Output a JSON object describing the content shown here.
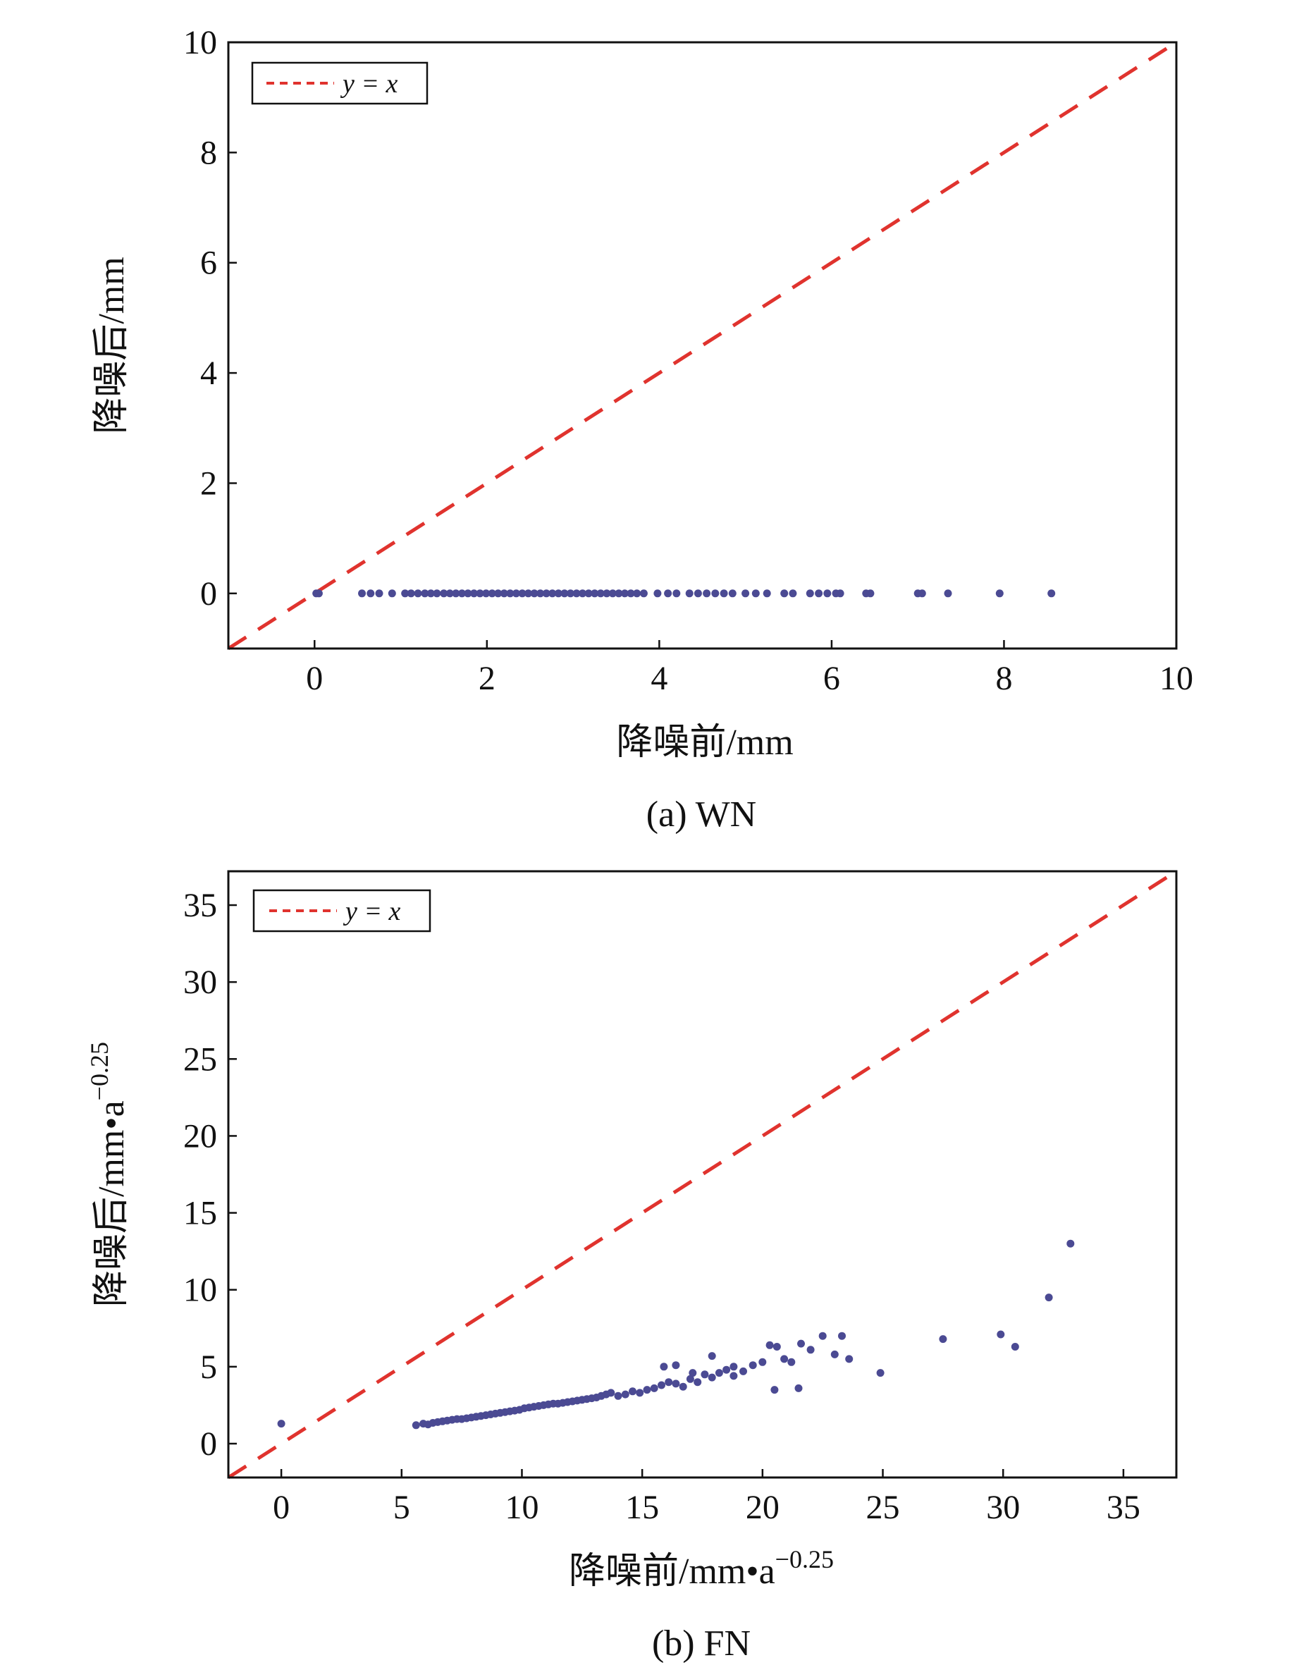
{
  "colors": {
    "ref_line": "#e0332e",
    "points": "#4b4a93",
    "axis": "#111111"
  },
  "chart_data": [
    {
      "id": "a",
      "type": "scatter",
      "caption": "(a) WN",
      "xlabel": "降噪前/mm",
      "ylabel": "降噪后/mm",
      "xlim": [
        -1,
        10
      ],
      "ylim": [
        -1,
        10
      ],
      "xticks": [
        "0",
        "2",
        "4",
        "6",
        "8",
        "10"
      ],
      "yticks": [
        "0",
        "2",
        "4",
        "6",
        "8",
        "10"
      ],
      "xtick_values": [
        0,
        2,
        4,
        6,
        8,
        10
      ],
      "ytick_values": [
        0,
        2,
        4,
        6,
        8,
        10
      ],
      "legend": {
        "label": "y = x",
        "position": "top-left"
      },
      "series": [
        {
          "name": "y = x",
          "kind": "line",
          "x": [
            -1,
            10
          ],
          "y": [
            -1,
            10
          ]
        },
        {
          "name": "points",
          "kind": "scatter",
          "x": [
            0.02,
            0.05,
            0.55,
            0.65,
            0.75,
            0.9,
            1.05,
            1.12,
            1.2,
            1.28,
            1.35,
            1.42,
            1.5,
            1.57,
            1.64,
            1.71,
            1.78,
            1.85,
            1.92,
            1.99,
            2.06,
            2.13,
            2.2,
            2.27,
            2.34,
            2.41,
            2.48,
            2.55,
            2.62,
            2.69,
            2.76,
            2.83,
            2.9,
            2.97,
            3.04,
            3.11,
            3.18,
            3.25,
            3.32,
            3.39,
            3.46,
            3.53,
            3.6,
            3.67,
            3.74,
            3.82,
            3.98,
            4.1,
            4.2,
            4.35,
            4.45,
            4.55,
            4.65,
            4.75,
            4.85,
            5.0,
            5.12,
            5.25,
            5.45,
            5.55,
            5.75,
            5.85,
            5.95,
            6.05,
            6.1,
            6.4,
            6.45,
            7.0,
            7.05,
            7.35,
            7.95,
            8.55
          ],
          "y": [
            0,
            0,
            0,
            0,
            0,
            0,
            0,
            0,
            0,
            0,
            0,
            0,
            0,
            0,
            0,
            0,
            0,
            0,
            0,
            0,
            0,
            0,
            0,
            0,
            0,
            0,
            0,
            0,
            0,
            0,
            0,
            0,
            0,
            0,
            0,
            0,
            0,
            0,
            0,
            0,
            0,
            0,
            0,
            0,
            0,
            0,
            0,
            0,
            0,
            0,
            0,
            0,
            0,
            0,
            0,
            0,
            0,
            0,
            0,
            0,
            0,
            0,
            0,
            0,
            0,
            0,
            0,
            0,
            0,
            0,
            0,
            0
          ]
        }
      ]
    },
    {
      "id": "b",
      "type": "scatter",
      "caption": "(b) FN",
      "xlabel": "降噪前/mm•a",
      "xlabel_sup": "−0.25",
      "ylabel": "降噪后/mm•a",
      "ylabel_sup": "−0.25",
      "xlim": [
        -2.2,
        37.2
      ],
      "ylim": [
        -2.2,
        37.2
      ],
      "xticks": [
        "0",
        "5",
        "10",
        "15",
        "20",
        "25",
        "30",
        "35"
      ],
      "yticks": [
        "0",
        "5",
        "10",
        "15",
        "20",
        "25",
        "30",
        "35"
      ],
      "xtick_values": [
        0,
        5,
        10,
        15,
        20,
        25,
        30,
        35
      ],
      "ytick_values": [
        0,
        5,
        10,
        15,
        20,
        25,
        30,
        35
      ],
      "legend": {
        "label": "y = x",
        "position": "top-left"
      },
      "series": [
        {
          "name": "y = x",
          "kind": "line",
          "x": [
            -2.2,
            37.2
          ],
          "y": [
            -2.2,
            37.2
          ]
        },
        {
          "name": "points",
          "kind": "scatter",
          "x": [
            0.0,
            5.6,
            5.9,
            6.1,
            6.3,
            6.5,
            6.7,
            6.9,
            7.1,
            7.3,
            7.5,
            7.7,
            7.9,
            8.1,
            8.3,
            8.5,
            8.7,
            8.9,
            9.1,
            9.3,
            9.5,
            9.7,
            9.9,
            10.1,
            10.3,
            10.5,
            10.7,
            10.9,
            11.1,
            11.3,
            11.5,
            11.7,
            11.9,
            12.1,
            12.3,
            12.5,
            12.7,
            12.9,
            13.1,
            13.3,
            13.5,
            13.7,
            14.0,
            14.3,
            14.6,
            14.9,
            15.2,
            15.5,
            15.8,
            16.1,
            16.4,
            16.7,
            17.0,
            17.3,
            17.6,
            17.9,
            18.2,
            18.5,
            18.8,
            19.2,
            19.6,
            20.0,
            20.3,
            20.6,
            20.9,
            21.2,
            21.6,
            22.0,
            22.5,
            23.0,
            23.3,
            23.6,
            24.9,
            27.5,
            29.9,
            30.5,
            31.9,
            32.8,
            15.9,
            17.9,
            18.8,
            20.5,
            21.5,
            16.4,
            17.1
          ],
          "y": [
            1.3,
            1.2,
            1.3,
            1.25,
            1.35,
            1.4,
            1.45,
            1.5,
            1.55,
            1.6,
            1.6,
            1.65,
            1.7,
            1.75,
            1.8,
            1.85,
            1.9,
            1.95,
            2.0,
            2.05,
            2.1,
            2.15,
            2.2,
            2.3,
            2.35,
            2.4,
            2.45,
            2.5,
            2.55,
            2.6,
            2.6,
            2.65,
            2.7,
            2.75,
            2.8,
            2.85,
            2.9,
            2.95,
            3.0,
            3.1,
            3.2,
            3.3,
            3.1,
            3.2,
            3.4,
            3.3,
            3.5,
            3.6,
            3.8,
            4.0,
            3.9,
            3.7,
            4.2,
            4.0,
            4.5,
            4.3,
            4.6,
            4.8,
            5.0,
            4.7,
            5.1,
            5.3,
            6.4,
            6.3,
            5.5,
            5.3,
            6.5,
            6.1,
            7.0,
            5.8,
            7.0,
            5.5,
            4.6,
            6.8,
            7.1,
            6.3,
            9.5,
            13.0,
            5.0,
            5.7,
            4.4,
            3.5,
            3.6,
            5.1,
            4.6
          ]
        }
      ]
    }
  ]
}
